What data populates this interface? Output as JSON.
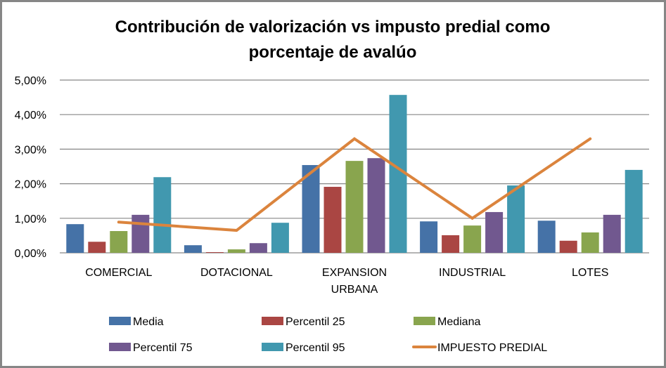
{
  "chart_data": {
    "type": "bar",
    "title_lines": [
      "Contribución de valorización vs  impusto predial como",
      "porcentaje de avalúo"
    ],
    "xlabel": "",
    "ylabel": "",
    "ylim": [
      0,
      5
    ],
    "y_ticks": [
      0,
      1,
      2,
      3,
      4,
      5
    ],
    "y_tick_labels": [
      "0,00%",
      "1,00%",
      "2,00%",
      "3,00%",
      "4,00%",
      "5,00%"
    ],
    "grid": true,
    "legend_position": "bottom",
    "categories": [
      {
        "label": [
          "COMERCIAL"
        ]
      },
      {
        "label": [
          "DOTACIONAL"
        ]
      },
      {
        "label": [
          "EXPANSION",
          "URBANA"
        ]
      },
      {
        "label": [
          "INDUSTRIAL"
        ]
      },
      {
        "label": [
          "LOTES"
        ]
      }
    ],
    "series": [
      {
        "name": "Media",
        "kind": "bar",
        "color": "#4572A7",
        "values": [
          0.83,
          0.22,
          2.54,
          0.91,
          0.93
        ]
      },
      {
        "name": "Percentil 25",
        "kind": "bar",
        "color": "#AA4643",
        "values": [
          0.32,
          0.02,
          1.91,
          0.51,
          0.35
        ]
      },
      {
        "name": "Mediana",
        "kind": "bar",
        "color": "#89A54E",
        "values": [
          0.63,
          0.1,
          2.66,
          0.79,
          0.59
        ]
      },
      {
        "name": "Percentil 75",
        "kind": "bar",
        "color": "#71588F",
        "values": [
          1.1,
          0.28,
          2.74,
          1.18,
          1.1
        ]
      },
      {
        "name": "Percentil 95",
        "kind": "bar",
        "color": "#4198AF",
        "values": [
          2.19,
          0.87,
          4.57,
          1.95,
          2.4
        ]
      },
      {
        "name": "IMPUESTO PREDIAL",
        "kind": "line",
        "color": "#DB843D",
        "values": [
          0.89,
          0.65,
          3.3,
          1.0,
          3.3
        ]
      }
    ],
    "units": "percent"
  }
}
